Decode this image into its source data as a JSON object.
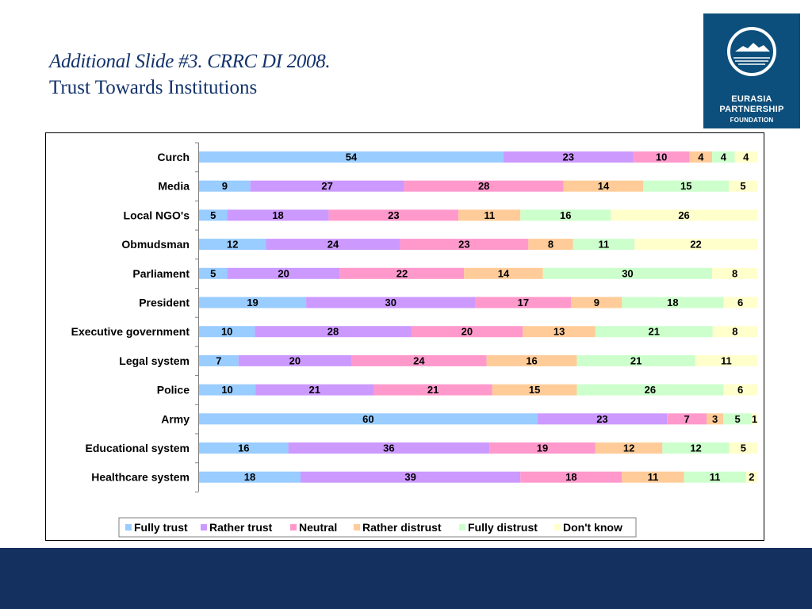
{
  "slide": {
    "title_line1": "Additional Slide #3. CRRC DI 2008.",
    "title_line2": "Trust Towards Institutions"
  },
  "logo": {
    "name_line1": "EURASIA",
    "name_line2": "PARTNERSHIP",
    "name_line3": "FOUNDATION",
    "icon": "eurasia-partnership-logo-icon"
  },
  "colors": {
    "title": "#13336b",
    "logo_bg": "#0d4f7c",
    "footer_bg": "#13305e"
  },
  "chart_data": {
    "type": "bar",
    "orientation": "horizontal",
    "stacked": true,
    "categories": [
      "Curch",
      "Media",
      "Local NGO's",
      "Obmudsman",
      "Parliament",
      "President",
      "Executive government",
      "Legal system",
      "Police",
      "Army",
      "Educational system",
      "Healthcare system"
    ],
    "series": [
      {
        "name": "Fully trust",
        "color": "#99ccff",
        "values": [
          54,
          9,
          5,
          12,
          5,
          19,
          10,
          7,
          10,
          60,
          16,
          18
        ]
      },
      {
        "name": "Rather trust",
        "color": "#cc99ff",
        "values": [
          23,
          27,
          18,
          24,
          20,
          30,
          28,
          20,
          21,
          23,
          36,
          39
        ]
      },
      {
        "name": "Neutral",
        "color": "#ff99cc",
        "values": [
          10,
          28,
          23,
          23,
          22,
          17,
          20,
          24,
          21,
          7,
          19,
          18
        ]
      },
      {
        "name": "Rather distrust",
        "color": "#ffcc99",
        "values": [
          4,
          14,
          11,
          8,
          14,
          9,
          13,
          16,
          15,
          3,
          12,
          11
        ]
      },
      {
        "name": "Fully distrust",
        "color": "#ccffcc",
        "values": [
          4,
          15,
          16,
          11,
          30,
          18,
          21,
          21,
          26,
          5,
          12,
          11
        ]
      },
      {
        "name": "Don't know",
        "color": "#ffffcc",
        "values": [
          4,
          5,
          26,
          22,
          8,
          6,
          8,
          11,
          6,
          1,
          5,
          2
        ]
      }
    ],
    "title": "",
    "xlabel": "",
    "ylabel": "",
    "grid": false,
    "legend": "bottom"
  }
}
